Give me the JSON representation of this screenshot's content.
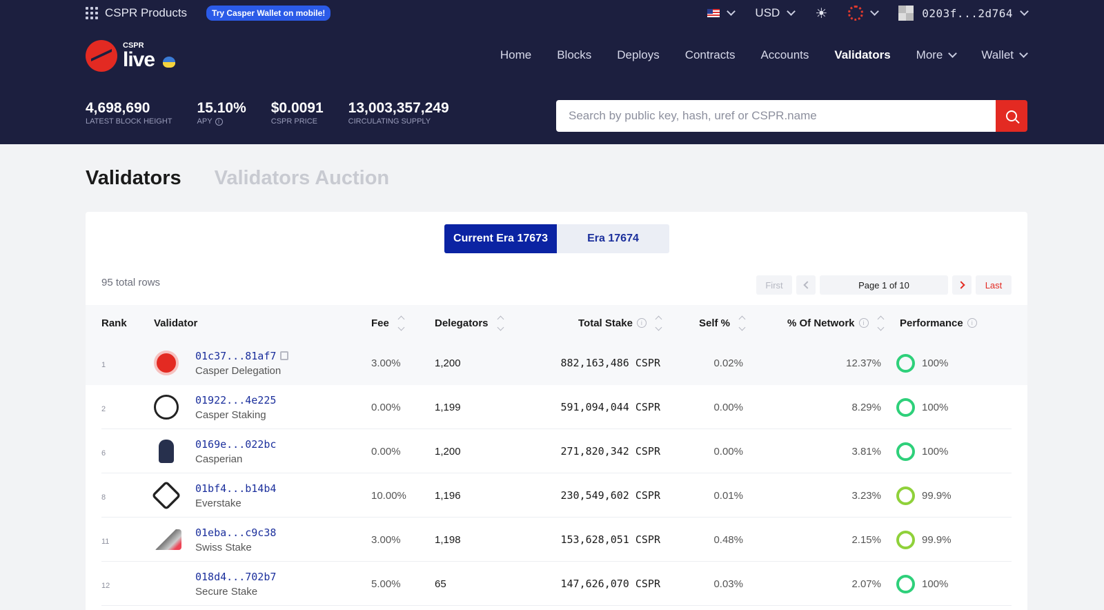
{
  "topbar": {
    "products_label": "CSPR Products",
    "wallet_pill": "Try Casper Wallet on mobile!",
    "currency": "USD",
    "account": "0203f...2d764"
  },
  "logo": {
    "small": "CSPR",
    "big": "live"
  },
  "nav": {
    "home": "Home",
    "blocks": "Blocks",
    "deploys": "Deploys",
    "contracts": "Contracts",
    "accounts": "Accounts",
    "validators": "Validators",
    "more": "More",
    "wallet": "Wallet"
  },
  "stats": [
    {
      "value": "4,698,690",
      "label": "Latest block height"
    },
    {
      "value": "15.10%",
      "label": "APY"
    },
    {
      "value": "$0.0091",
      "label": "CSPR price"
    },
    {
      "value": "13,003,357,249",
      "label": "Circulating supply"
    }
  ],
  "search": {
    "placeholder": "Search by public key, hash, uref or CSPR.name"
  },
  "page_tabs": {
    "validators": "Validators",
    "auction": "Validators Auction"
  },
  "era": {
    "current": "Current Era 17673",
    "next": "Era 17674"
  },
  "table": {
    "total_rows": "95 total rows",
    "pager": {
      "first": "First",
      "page": "Page 1 of 10",
      "last": "Last"
    },
    "headers": {
      "rank": "Rank",
      "validator": "Validator",
      "fee": "Fee",
      "delegators": "Delegators",
      "total_stake": "Total Stake",
      "self": "Self %",
      "network": "% Of Network",
      "performance": "Performance"
    },
    "rows": [
      {
        "rank": "1",
        "hash": "01c37...81af7",
        "name": "Casper Delegation",
        "fee": "3.00%",
        "delegators": "1,200",
        "stake": "882,163,486 CSPR",
        "self": "0.02%",
        "network": "12.37%",
        "performance": "100%"
      },
      {
        "rank": "2",
        "hash": "01922...4e225",
        "name": "Casper Staking",
        "fee": "0.00%",
        "delegators": "1,199",
        "stake": "591,094,044 CSPR",
        "self": "0.00%",
        "network": "8.29%",
        "performance": "100%"
      },
      {
        "rank": "6",
        "hash": "0169e...022bc",
        "name": "Casperian",
        "fee": "0.00%",
        "delegators": "1,200",
        "stake": "271,820,342 CSPR",
        "self": "0.00%",
        "network": "3.81%",
        "performance": "100%"
      },
      {
        "rank": "8",
        "hash": "01bf4...b14b4",
        "name": "Everstake",
        "fee": "10.00%",
        "delegators": "1,196",
        "stake": "230,549,602 CSPR",
        "self": "0.01%",
        "network": "3.23%",
        "performance": "99.9%"
      },
      {
        "rank": "11",
        "hash": "01eba...c9c38",
        "name": "Swiss Stake",
        "fee": "3.00%",
        "delegators": "1,198",
        "stake": "153,628,051 CSPR",
        "self": "0.48%",
        "network": "2.15%",
        "performance": "99.9%"
      },
      {
        "rank": "12",
        "hash": "018d4...702b7",
        "name": "Secure Stake",
        "fee": "5.00%",
        "delegators": "65",
        "stake": "147,626,070 CSPR",
        "self": "0.03%",
        "network": "2.07%",
        "performance": "100%"
      }
    ]
  },
  "colors": {
    "header_bg": "#1c1f3f",
    "accent_red": "#e32a22",
    "primary_blue": "#0b23a3",
    "perf_green": "#2ed07a",
    "perf_lime": "#8fd13a"
  },
  "icons": [
    "grid-icon",
    "flag-icon",
    "chevron-down-icon",
    "sun-icon",
    "network-icon",
    "avatar-icon",
    "search-icon",
    "info-icon",
    "sort-icon",
    "copy-icon"
  ]
}
